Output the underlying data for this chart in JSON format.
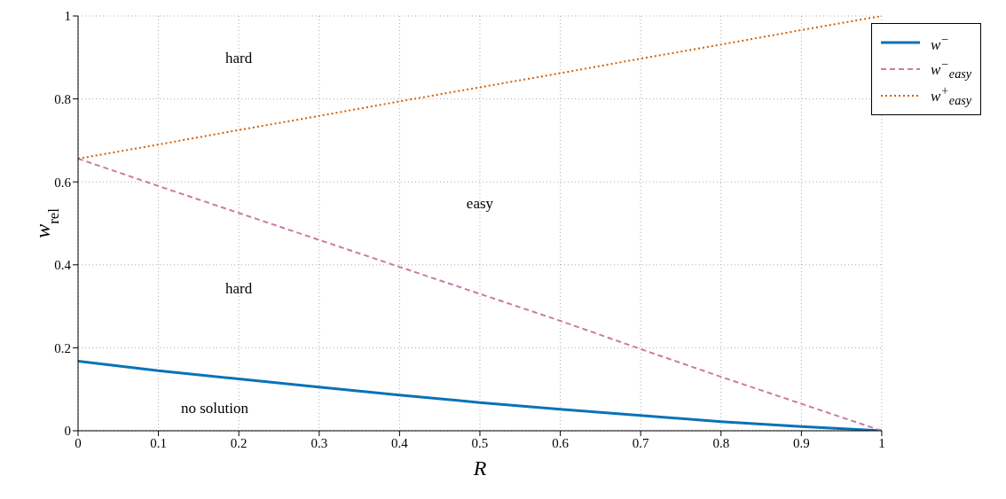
{
  "chart_data": {
    "type": "line",
    "xlabel": "R",
    "ylabel": "w$_{rel}$",
    "x": [
      0,
      0.1,
      0.2,
      0.3,
      0.4,
      0.5,
      0.6,
      0.7,
      0.8,
      0.9,
      1
    ],
    "series": [
      {
        "name": "w$^{−}$",
        "color": "#0a72b8",
        "line_style": "solid",
        "values": [
          0.168,
          0.145,
          0.125,
          0.105,
          0.086,
          0.068,
          0.052,
          0.037,
          0.022,
          0.01,
          0
        ]
      },
      {
        "name": "w$^{−}$$_{easy}$",
        "color": "#cc79a7",
        "line_style": "dashed",
        "values": [
          0.656,
          0.59,
          0.525,
          0.46,
          0.395,
          0.33,
          0.265,
          0.197,
          0.13,
          0.065,
          0
        ]
      },
      {
        "name": "w$^{+}$$_{easy}$",
        "color": "#d55e00",
        "line_style": "dotted",
        "values": [
          0.656,
          0.69,
          0.725,
          0.759,
          0.794,
          0.828,
          0.862,
          0.897,
          0.931,
          0.966,
          1
        ]
      }
    ],
    "xlim": [
      0,
      1
    ],
    "xticks": [
      0,
      0.1,
      0.2,
      0.3,
      0.4,
      0.5,
      0.6,
      0.7,
      0.8,
      0.9,
      1
    ],
    "ylim": [
      0,
      1
    ],
    "yticks": [
      0,
      0.2,
      0.4,
      0.6,
      0.8,
      1
    ],
    "grid": true,
    "legend": "top right",
    "marker": "none",
    "annotations": [
      "hard",
      "easy",
      "hard",
      "no solution"
    ]
  }
}
